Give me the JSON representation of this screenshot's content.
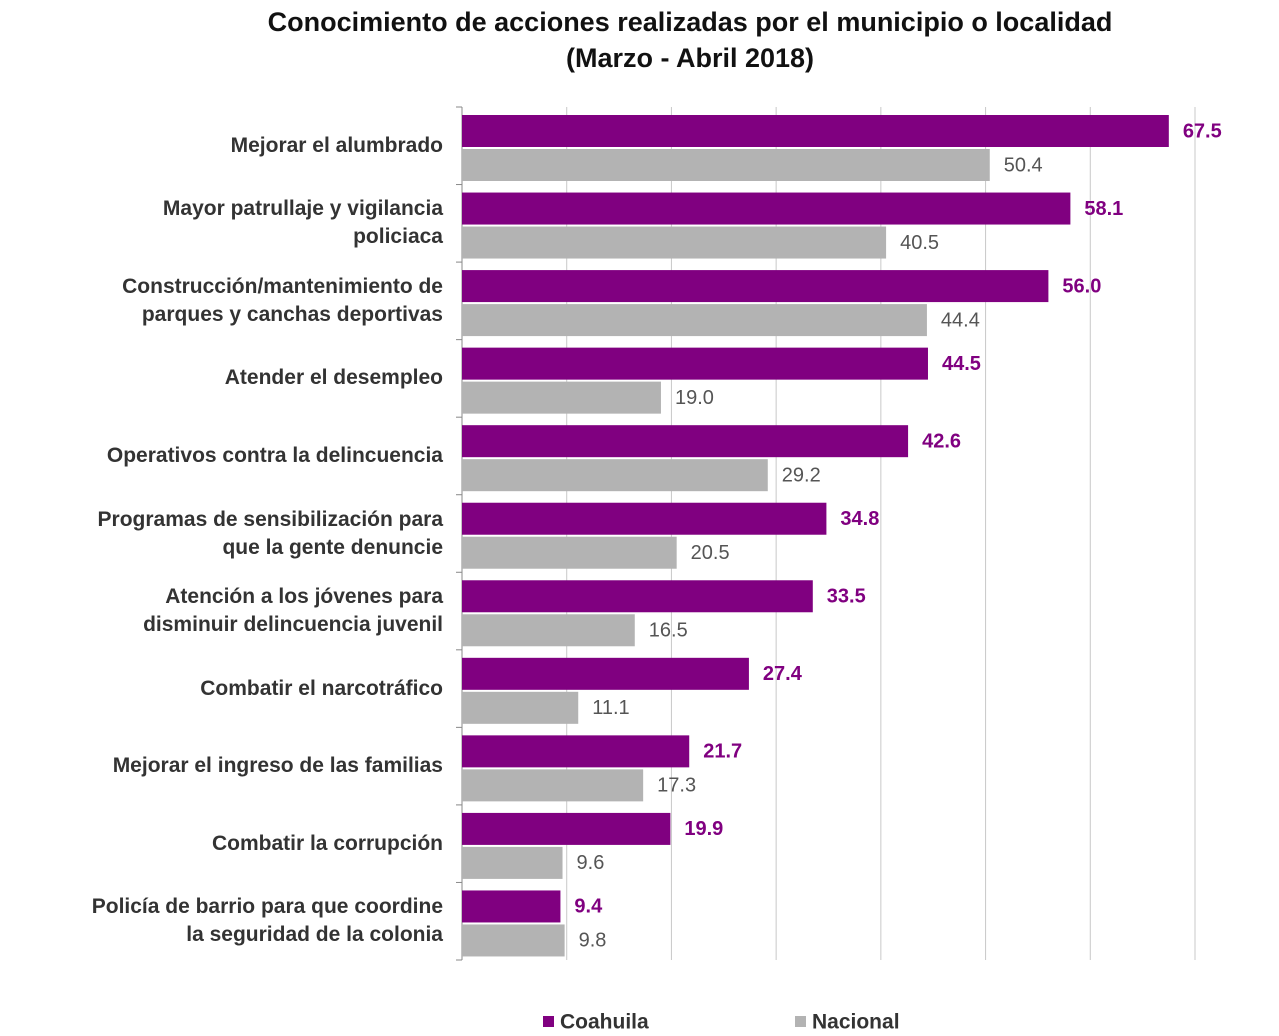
{
  "chart_data": {
    "type": "bar",
    "orientation": "horizontal",
    "title": "Conocimiento de acciones realizadas por el municipio o localidad",
    "subtitle": "(Marzo - Abril 2018)",
    "categories": [
      "Mejorar el alumbrado",
      "Mayor patrullaje y vigilancia\npoliciaca",
      "Construcción/mantenimiento de\nparques y canchas deportivas",
      "Atender el desempleo",
      "Operativos contra la delincuencia",
      "Programas de sensibilización para\nque la gente denuncie",
      "Atención a los jóvenes para\ndisminuir delincuencia juvenil",
      "Combatir el narcotráfico",
      "Mejorar el ingreso de las familias",
      "Combatir la corrupción",
      "Policía de barrio para que coordine\nla seguridad de la colonia"
    ],
    "series": [
      {
        "name": "Coahuila",
        "color": "#800080",
        "values": [
          67.5,
          58.1,
          56.0,
          44.5,
          42.6,
          34.8,
          33.5,
          27.4,
          21.7,
          19.9,
          9.4
        ],
        "value_labels": [
          "67.5",
          "58.1",
          "56.0",
          "44.5",
          "42.6",
          "34.8",
          "33.5",
          "27.4",
          "21.7",
          "19.9",
          "9.4"
        ]
      },
      {
        "name": "Nacional",
        "color": "#b3b3b3",
        "values": [
          50.4,
          40.5,
          44.4,
          19.0,
          29.2,
          20.5,
          16.5,
          11.1,
          17.3,
          9.6,
          9.8
        ],
        "value_labels": [
          "50.4",
          "40.5",
          "44.4",
          "19.0",
          "29.2",
          "20.5",
          "16.5",
          "11.1",
          "17.3",
          "9.6",
          "9.8"
        ]
      }
    ],
    "xlim": [
      0,
      70
    ],
    "xticks": [
      0,
      10,
      20,
      30,
      40,
      50,
      60,
      70
    ],
    "grid": true,
    "legend": "bottom"
  }
}
